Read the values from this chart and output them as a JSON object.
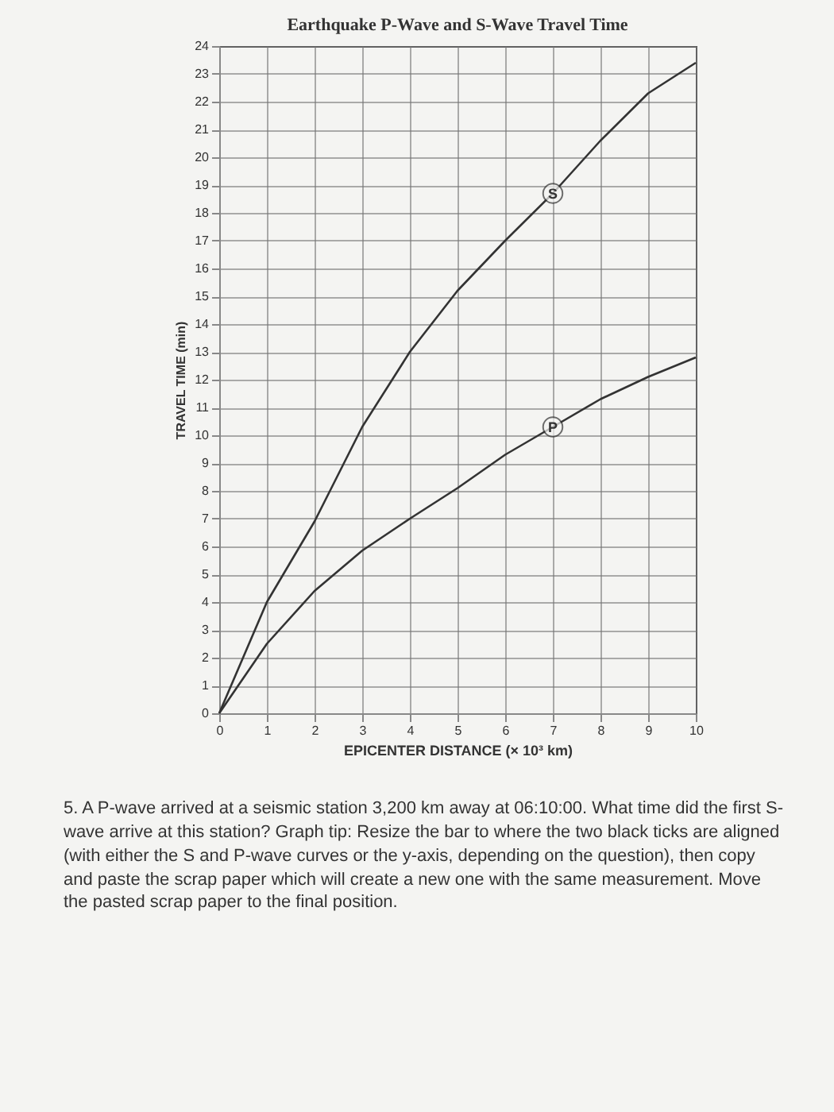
{
  "chart_data": {
    "type": "line",
    "title": "Earthquake P-Wave and S-Wave Travel Time",
    "xlabel": "EPICENTER DISTANCE (× 10³ km)",
    "ylabel": "TRAVEL TIME (min)",
    "x": [
      0,
      1,
      2,
      3,
      4,
      5,
      6,
      7,
      8,
      9,
      10
    ],
    "series": [
      {
        "name": "S",
        "color": "#333333",
        "values": [
          0,
          4.0,
          6.9,
          10.3,
          13.0,
          15.2,
          17.0,
          18.7,
          20.6,
          22.3,
          23.4
        ]
      },
      {
        "name": "P",
        "color": "#333333",
        "values": [
          0,
          2.5,
          4.4,
          5.85,
          7.0,
          8.1,
          9.3,
          10.3,
          11.3,
          12.1,
          12.8
        ]
      }
    ],
    "xlim": [
      0,
      10
    ],
    "xticks": [
      0,
      1,
      2,
      3,
      4,
      5,
      6,
      7,
      8,
      9,
      10
    ],
    "ylim": [
      0,
      24
    ],
    "yticks": [
      0,
      1,
      2,
      3,
      4,
      5,
      6,
      7,
      8,
      9,
      10,
      11,
      12,
      13,
      14,
      15,
      16,
      17,
      18,
      19,
      20,
      21,
      22,
      23,
      24
    ],
    "grid": true,
    "legend": false,
    "marker": "none",
    "line_style": "solid",
    "annotations": [
      "5. A P-wave arrived at a seismic station 3,200 km away at 06:10:00. What time did the first S-wave arrive at this station? Graph tip: Resize the bar to where the two black ticks are aligned (with either the S and P-wave curves or the y-axis, depending on the question), then copy and paste the scrap paper which will create a new one with the same measurement. Move the pasted scrap paper to the final position."
    ]
  }
}
